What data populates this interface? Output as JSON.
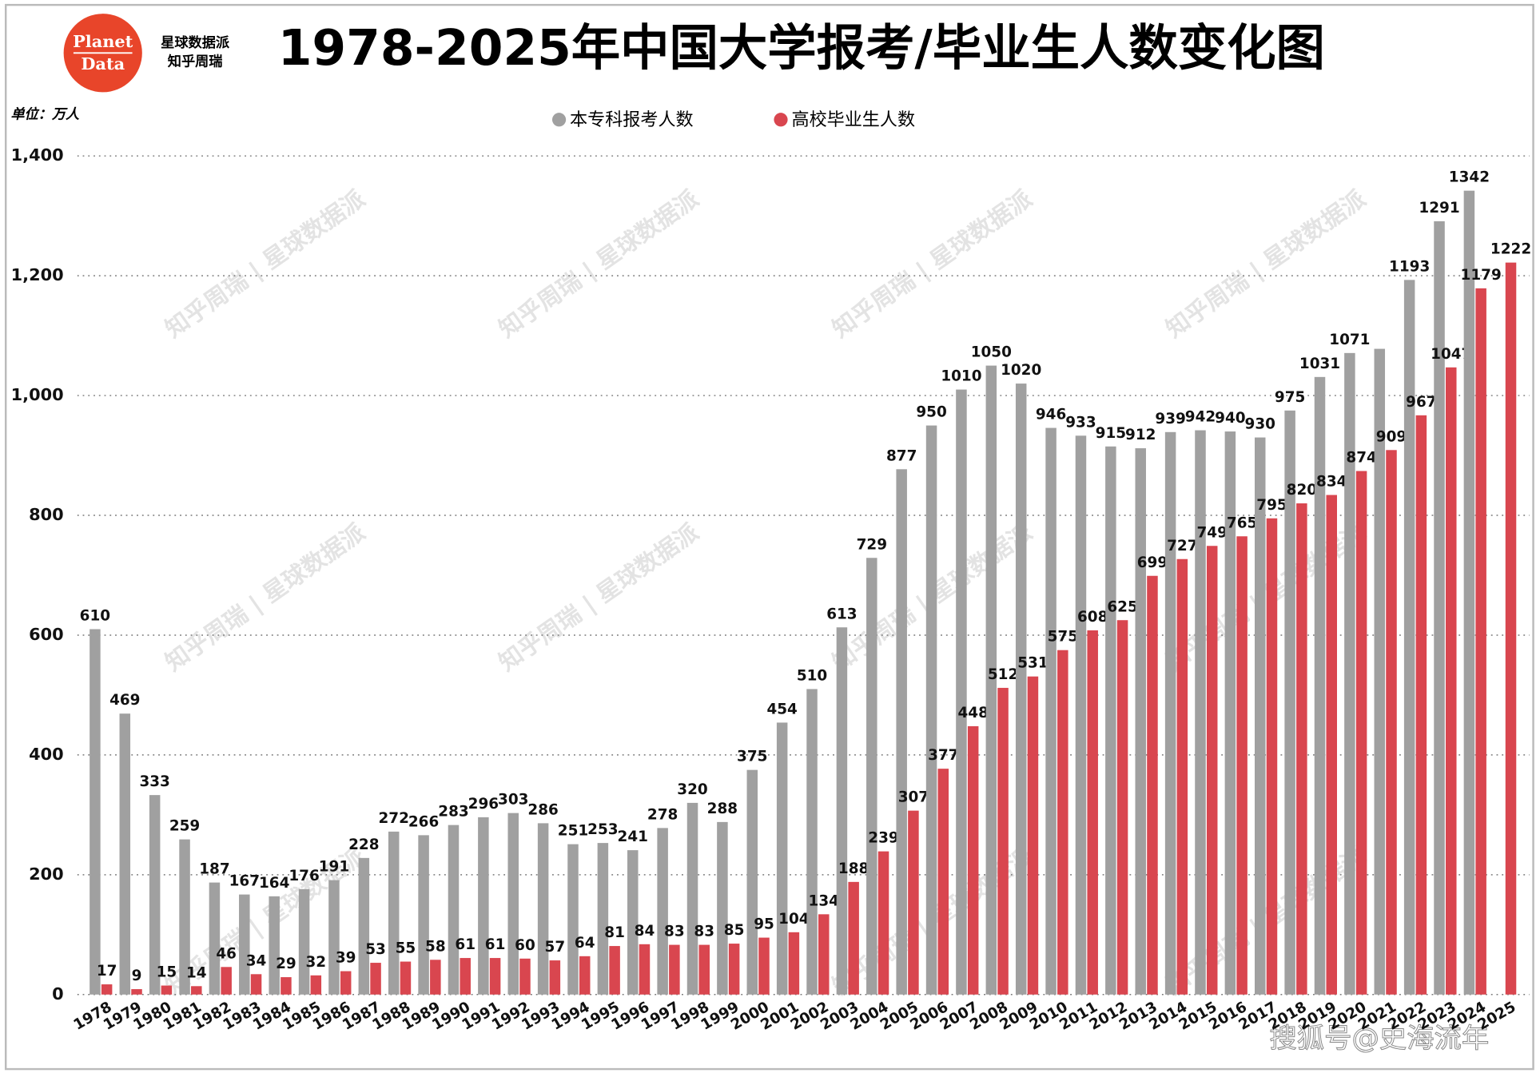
{
  "logo": "Planet Data",
  "brand": "星球数据派",
  "author": "知乎周瑞",
  "watermark": "知乎周瑞 | 星球数据派",
  "footer": "搜狐号@史海流年",
  "chart_data": {
    "type": "bar",
    "title": "1978-2025年中国大学报考/毕业生人数变化图",
    "unit": "单位：万人",
    "categories": [
      "1978",
      "1979",
      "1980",
      "1981",
      "1982",
      "1983",
      "1984",
      "1985",
      "1986",
      "1987",
      "1988",
      "1989",
      "1990",
      "1991",
      "1992",
      "1993",
      "1994",
      "1995",
      "1996",
      "1997",
      "1998",
      "1999",
      "2000",
      "2001",
      "2002",
      "2003",
      "2004",
      "2005",
      "2006",
      "2007",
      "2008",
      "2009",
      "2010",
      "2011",
      "2012",
      "2013",
      "2014",
      "2015",
      "2016",
      "2017",
      "2018",
      "2019",
      "2020",
      "2021",
      "2022",
      "2023",
      "2024",
      "2025"
    ],
    "series": [
      {
        "name": "本专科报考人数",
        "color": "#a0a0a0",
        "values": [
          610,
          469,
          333,
          259,
          187,
          167,
          164,
          176,
          191,
          228,
          272,
          266,
          283,
          296,
          303,
          286,
          251,
          253,
          241,
          278,
          320,
          288,
          375,
          454,
          510,
          613,
          729,
          877,
          950,
          1010,
          1050,
          1020,
          946,
          933,
          915,
          912,
          939,
          942,
          940,
          930,
          975,
          1031,
          1071,
          1078,
          1193,
          1291,
          1342,
          null
        ],
        "value_labels": [
          "610",
          "469",
          "333",
          "259",
          "187",
          "167",
          "164",
          "176",
          "191",
          "228",
          "272",
          "266",
          "283",
          "296",
          "303",
          "286",
          "251",
          "253",
          "241",
          "278",
          "320",
          "288",
          "375",
          "454",
          "510",
          "613",
          "729",
          "877",
          "950",
          "1010",
          "1050",
          "1020",
          "946",
          "933",
          "915",
          "912",
          "939",
          "942",
          "940",
          "930",
          "975",
          "1031",
          "1071",
          null,
          "1193",
          "1291",
          "1342",
          null
        ]
      },
      {
        "name": "高校毕业生人数",
        "color": "#d9464f",
        "values": [
          17,
          9,
          15,
          14,
          46,
          34,
          29,
          32,
          39,
          53,
          55,
          58,
          61,
          61,
          60,
          57,
          64,
          81,
          84,
          83,
          83,
          85,
          95,
          104,
          134,
          188,
          239,
          307,
          377,
          448,
          512,
          531,
          575,
          608,
          625,
          699,
          727,
          749,
          765,
          795,
          820,
          834,
          874,
          909,
          967,
          1047,
          1179,
          1222
        ]
      }
    ],
    "ylim": [
      0,
      1400
    ],
    "yticks": [
      0,
      200,
      400,
      600,
      800,
      {
        "value": 1000,
        "label": "1,000"
      },
      {
        "value": 1200,
        "label": "1,200"
      },
      {
        "value": 1400,
        "label": "1,400"
      }
    ],
    "grid": true
  }
}
